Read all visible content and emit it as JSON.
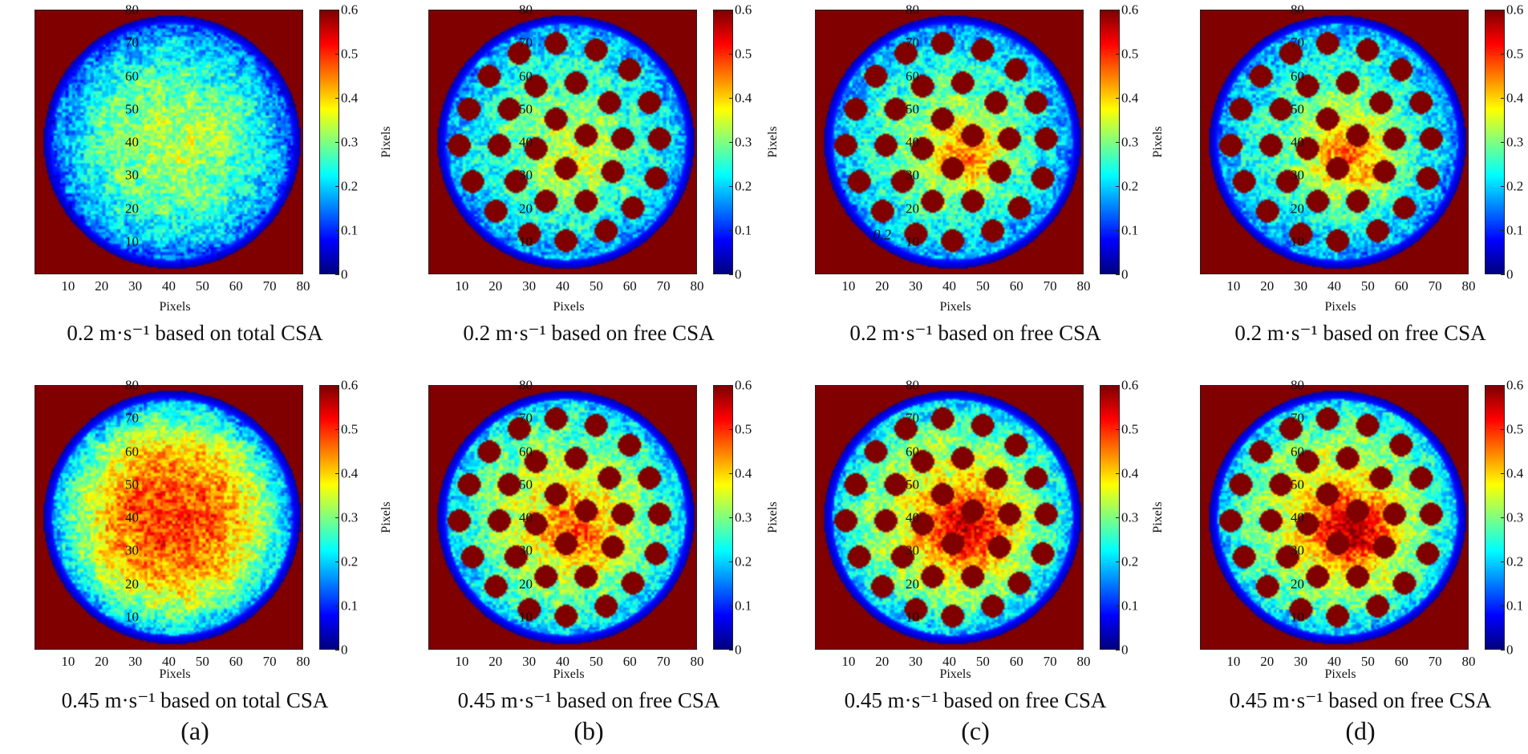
{
  "figure": {
    "panel_labels": [
      "(a)",
      "(b)",
      "(c)",
      "(d)"
    ]
  },
  "rods": [
    [
      27,
      67
    ],
    [
      38,
      70
    ],
    [
      50,
      68
    ],
    [
      18,
      60
    ],
    [
      32,
      57
    ],
    [
      44,
      58
    ],
    [
      60,
      62
    ],
    [
      12,
      50
    ],
    [
      24,
      50
    ],
    [
      38,
      47
    ],
    [
      54,
      52
    ],
    [
      66,
      52
    ],
    [
      9,
      39
    ],
    [
      21,
      39
    ],
    [
      32,
      38
    ],
    [
      47,
      42
    ],
    [
      58,
      41
    ],
    [
      69,
      41
    ],
    [
      13,
      28
    ],
    [
      26,
      28
    ],
    [
      41,
      32
    ],
    [
      55,
      31
    ],
    [
      68,
      29
    ],
    [
      20,
      19
    ],
    [
      35,
      22
    ],
    [
      47,
      22
    ],
    [
      61,
      20
    ],
    [
      30,
      12
    ],
    [
      41,
      10
    ],
    [
      53,
      13
    ]
  ],
  "chart_data": [
    {
      "type": "heatmap",
      "title": "0.2 m·s⁻¹ based on total CSA",
      "xlabel": "Pixels",
      "ylabel": "Pixels",
      "xlim": [
        0,
        80
      ],
      "ylim": [
        0,
        80
      ],
      "xticks": [
        "10",
        "20",
        "30",
        "40",
        "50",
        "60",
        "70",
        "80"
      ],
      "yticks": [
        "10",
        "20",
        "30",
        "40",
        "50",
        "60",
        "70",
        "80"
      ],
      "colormap": "jet",
      "colorbar": {
        "range": [
          0,
          0.6
        ],
        "ticks": [
          "0",
          "0.1",
          "0.2",
          "0.3",
          "0.4",
          "0.5",
          "0.6"
        ]
      },
      "field": {
        "center_value": 0.33,
        "edge_value": 0.07,
        "rods": false,
        "hotspot_value": 0.0
      }
    },
    {
      "type": "heatmap",
      "title": "0.2 m·s⁻¹ based on free CSA",
      "xlabel": "Pixels",
      "ylabel": "Pixels",
      "xlim": [
        0,
        80
      ],
      "ylim": [
        0,
        80
      ],
      "xticks": [
        "10",
        "20",
        "30",
        "40",
        "50",
        "60",
        "70",
        "80"
      ],
      "yticks": [
        "10",
        "20",
        "30",
        "40",
        "50",
        "60",
        "70",
        "80"
      ],
      "colormap": "jet",
      "colorbar": {
        "range": [
          0,
          0.6
        ],
        "ticks": [
          "0",
          "0.1",
          "0.2",
          "0.3",
          "0.4",
          "0.5",
          "0.6"
        ]
      },
      "field": {
        "center_value": 0.3,
        "edge_value": 0.12,
        "rods": true,
        "hotspot_value": 0.06
      }
    },
    {
      "type": "heatmap",
      "title": "0.2 m·s⁻¹ based on free CSA",
      "xlabel": "Pixels",
      "ylabel": "Pixels",
      "xlim": [
        0,
        80
      ],
      "ylim": [
        0,
        80
      ],
      "xticks": [
        "10",
        "20",
        "30",
        "40",
        "50",
        "60",
        "70",
        "80"
      ],
      "yticks": [
        "10",
        "20",
        "30",
        "40",
        "50",
        "60",
        "70",
        "80"
      ],
      "colormap": "jet",
      "colorbar": {
        "range": [
          0,
          0.6
        ],
        "ticks": [
          "0",
          "0.1",
          "0.2",
          "0.3",
          "0.4",
          "0.5",
          "0.6"
        ]
      },
      "field": {
        "center_value": 0.3,
        "edge_value": 0.12,
        "rods": true,
        "hotspot_value": 0.15
      },
      "annotation": {
        "text": "0.2",
        "x": 20,
        "y": 12
      }
    },
    {
      "type": "heatmap",
      "title": "0.2 m·s⁻¹ based on free CSA",
      "xlabel": "Pixels",
      "ylabel": "Pixels",
      "xlim": [
        0,
        80
      ],
      "ylim": [
        0,
        80
      ],
      "xticks": [
        "10",
        "20",
        "30",
        "40",
        "50",
        "60",
        "70",
        "80"
      ],
      "yticks": [
        "10",
        "20",
        "30",
        "40",
        "50",
        "60",
        "70",
        "80"
      ],
      "colormap": "jet",
      "colorbar": {
        "range": [
          0,
          0.6
        ],
        "ticks": [
          "0",
          "0.1",
          "0.2",
          "0.3",
          "0.4",
          "0.5",
          "0.6"
        ]
      },
      "field": {
        "center_value": 0.3,
        "edge_value": 0.12,
        "rods": true,
        "hotspot_value": 0.17
      }
    },
    {
      "type": "heatmap",
      "title": "0.45 m·s⁻¹ based on total CSA",
      "xlabel": "Pixels",
      "ylabel": "Pixels",
      "xlim": [
        0,
        80
      ],
      "ylim": [
        0,
        80
      ],
      "xticks": [
        "10",
        "20",
        "30",
        "40",
        "50",
        "60",
        "70",
        "80"
      ],
      "yticks": [
        "10",
        "20",
        "30",
        "40",
        "50",
        "60",
        "70",
        "80"
      ],
      "colormap": "jet",
      "colorbar": {
        "range": [
          0,
          0.6
        ],
        "ticks": [
          "0",
          "0.1",
          "0.2",
          "0.3",
          "0.4",
          "0.5",
          "0.6"
        ]
      },
      "field": {
        "center_value": 0.5,
        "edge_value": 0.07,
        "rods": false,
        "hotspot_value": 0.0
      }
    },
    {
      "type": "heatmap",
      "title": "0.45 m·s⁻¹ based on free CSA",
      "xlabel": "Pixels",
      "ylabel": "Pixels",
      "xlim": [
        0,
        80
      ],
      "ylim": [
        0,
        80
      ],
      "xticks": [
        "10",
        "20",
        "30",
        "40",
        "50",
        "60",
        "70",
        "80"
      ],
      "yticks": [
        "10",
        "20",
        "30",
        "40",
        "50",
        "60",
        "70",
        "80"
      ],
      "colormap": "jet",
      "colorbar": {
        "range": [
          0,
          0.6
        ],
        "ticks": [
          "0",
          "0.1",
          "0.2",
          "0.3",
          "0.4",
          "0.5",
          "0.6"
        ]
      },
      "field": {
        "center_value": 0.36,
        "edge_value": 0.14,
        "rods": true,
        "hotspot_value": 0.12
      }
    },
    {
      "type": "heatmap",
      "title": "0.45 m·s⁻¹ based on free CSA",
      "xlabel": "Pixels",
      "ylabel": "Pixels",
      "xlim": [
        0,
        80
      ],
      "ylim": [
        0,
        80
      ],
      "xticks": [
        "10",
        "20",
        "30",
        "40",
        "50",
        "60",
        "70",
        "80"
      ],
      "yticks": [
        "10",
        "20",
        "30",
        "40",
        "50",
        "60",
        "70",
        "80"
      ],
      "colormap": "jet",
      "colorbar": {
        "range": [
          0,
          0.6
        ],
        "ticks": [
          "0",
          "0.1",
          "0.2",
          "0.3",
          "0.4",
          "0.5",
          "0.6"
        ]
      },
      "field": {
        "center_value": 0.38,
        "edge_value": 0.14,
        "rods": true,
        "hotspot_value": 0.2
      }
    },
    {
      "type": "heatmap",
      "title": "0.45 m·s⁻¹ based on free CSA",
      "xlabel": "Pixels",
      "ylabel": "Pixels",
      "xlim": [
        0,
        80
      ],
      "ylim": [
        0,
        80
      ],
      "xticks": [
        "10",
        "20",
        "30",
        "40",
        "50",
        "60",
        "70",
        "80"
      ],
      "yticks": [
        "10",
        "20",
        "30",
        "40",
        "50",
        "60",
        "70",
        "80"
      ],
      "colormap": "jet",
      "colorbar": {
        "range": [
          0,
          0.6
        ],
        "ticks": [
          "0",
          "0.1",
          "0.2",
          "0.3",
          "0.4",
          "0.5",
          "0.6"
        ]
      },
      "field": {
        "center_value": 0.38,
        "edge_value": 0.14,
        "rods": true,
        "hotspot_value": 0.22
      }
    }
  ]
}
